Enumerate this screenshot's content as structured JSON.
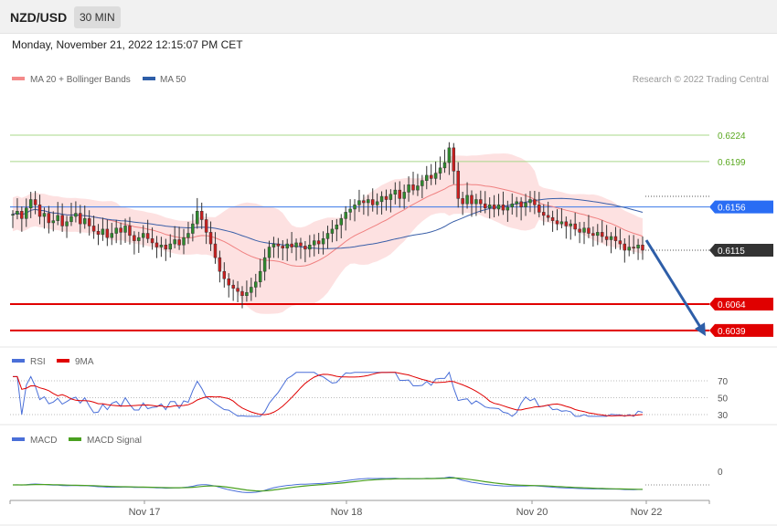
{
  "header": {
    "symbol": "NZD/USD",
    "timeframe": "30 MIN"
  },
  "datetime": "Monday, November 21, 2022 12:15:07 PM CET",
  "main_panel": {
    "legend": {
      "bb_label": "MA 20 + Bollinger Bands",
      "ma50_label": "MA 50",
      "bb_color": "#f48a8a",
      "ma50_color": "#2e5ea8"
    },
    "credit": "Research © 2022 Trading Central",
    "levels": [
      {
        "value": "0.6224",
        "color": "#5aa820",
        "style": "text"
      },
      {
        "value": "0.6199",
        "color": "#5aa820",
        "style": "text"
      },
      {
        "value": "0.6156",
        "color": "#2a6df4",
        "style": "tag"
      },
      {
        "value": "0.6115",
        "color": "#333333",
        "style": "tag"
      },
      {
        "value": "0.6064",
        "color": "#e00000",
        "style": "tag"
      },
      {
        "value": "0.6039",
        "color": "#e00000",
        "style": "tag"
      }
    ]
  },
  "rsi_panel": {
    "legend": {
      "rsi_label": "RSI",
      "ma_label": "9MA",
      "rsi_color": "#4a6fd8",
      "ma_color": "#e00000"
    },
    "ticks": [
      "70",
      "50",
      "30"
    ]
  },
  "macd_panel": {
    "legend": {
      "macd_label": "MACD",
      "signal_label": "MACD Signal",
      "macd_color": "#4a6fd8",
      "signal_color": "#4aa020"
    },
    "ticks": [
      "0"
    ]
  },
  "x_axis": {
    "labels": [
      "Nov 17",
      "Nov 18",
      "Nov 20",
      "Nov 22"
    ]
  },
  "chart_data": {
    "type": "candlestick",
    "pair": "NZD/USD",
    "interval": "30 MIN",
    "ylim": [
      0.603,
      0.6235
    ],
    "close_start": 0.6149,
    "close_path": [
      0.6149,
      0.6152,
      0.6145,
      0.6155,
      0.6163,
      0.6158,
      0.6147,
      0.615,
      0.6141,
      0.6143,
      0.6148,
      0.6138,
      0.6142,
      0.6147,
      0.615,
      0.614,
      0.6145,
      0.6138,
      0.6133,
      0.613,
      0.6135,
      0.6127,
      0.6131,
      0.6136,
      0.6132,
      0.6138,
      0.6129,
      0.6124,
      0.6127,
      0.6131,
      0.6126,
      0.6122,
      0.6118,
      0.612,
      0.6116,
      0.6121,
      0.6125,
      0.612,
      0.6127,
      0.6131,
      0.614,
      0.6152,
      0.6144,
      0.6132,
      0.6121,
      0.6108,
      0.6095,
      0.6088,
      0.6082,
      0.6079,
      0.6076,
      0.6072,
      0.6075,
      0.608,
      0.6085,
      0.6095,
      0.6108,
      0.6118,
      0.6121,
      0.6119,
      0.6117,
      0.6121,
      0.6118,
      0.6122,
      0.6119,
      0.6116,
      0.612,
      0.6124,
      0.6121,
      0.6126,
      0.6131,
      0.6135,
      0.6139,
      0.6145,
      0.6151,
      0.6154,
      0.6158,
      0.6162,
      0.616,
      0.6163,
      0.6158,
      0.6161,
      0.6166,
      0.6163,
      0.6168,
      0.6172,
      0.6164,
      0.617,
      0.6177,
      0.6172,
      0.6176,
      0.6181,
      0.6186,
      0.6183,
      0.6188,
      0.6193,
      0.6198,
      0.6212,
      0.619,
      0.6164,
      0.6159,
      0.6167,
      0.6159,
      0.6163,
      0.6159,
      0.6155,
      0.6158,
      0.6154,
      0.6158,
      0.6153,
      0.6156,
      0.6159,
      0.6161,
      0.6156,
      0.616,
      0.6163,
      0.6158,
      0.6151,
      0.6148,
      0.6146,
      0.6143,
      0.614,
      0.6142,
      0.6138,
      0.614,
      0.6135,
      0.6132,
      0.6136,
      0.6131,
      0.6129,
      0.6132,
      0.6128,
      0.6125,
      0.6128,
      0.6124,
      0.6121,
      0.6115,
      0.6118,
      0.6117,
      0.612,
      0.6115
    ]
  }
}
